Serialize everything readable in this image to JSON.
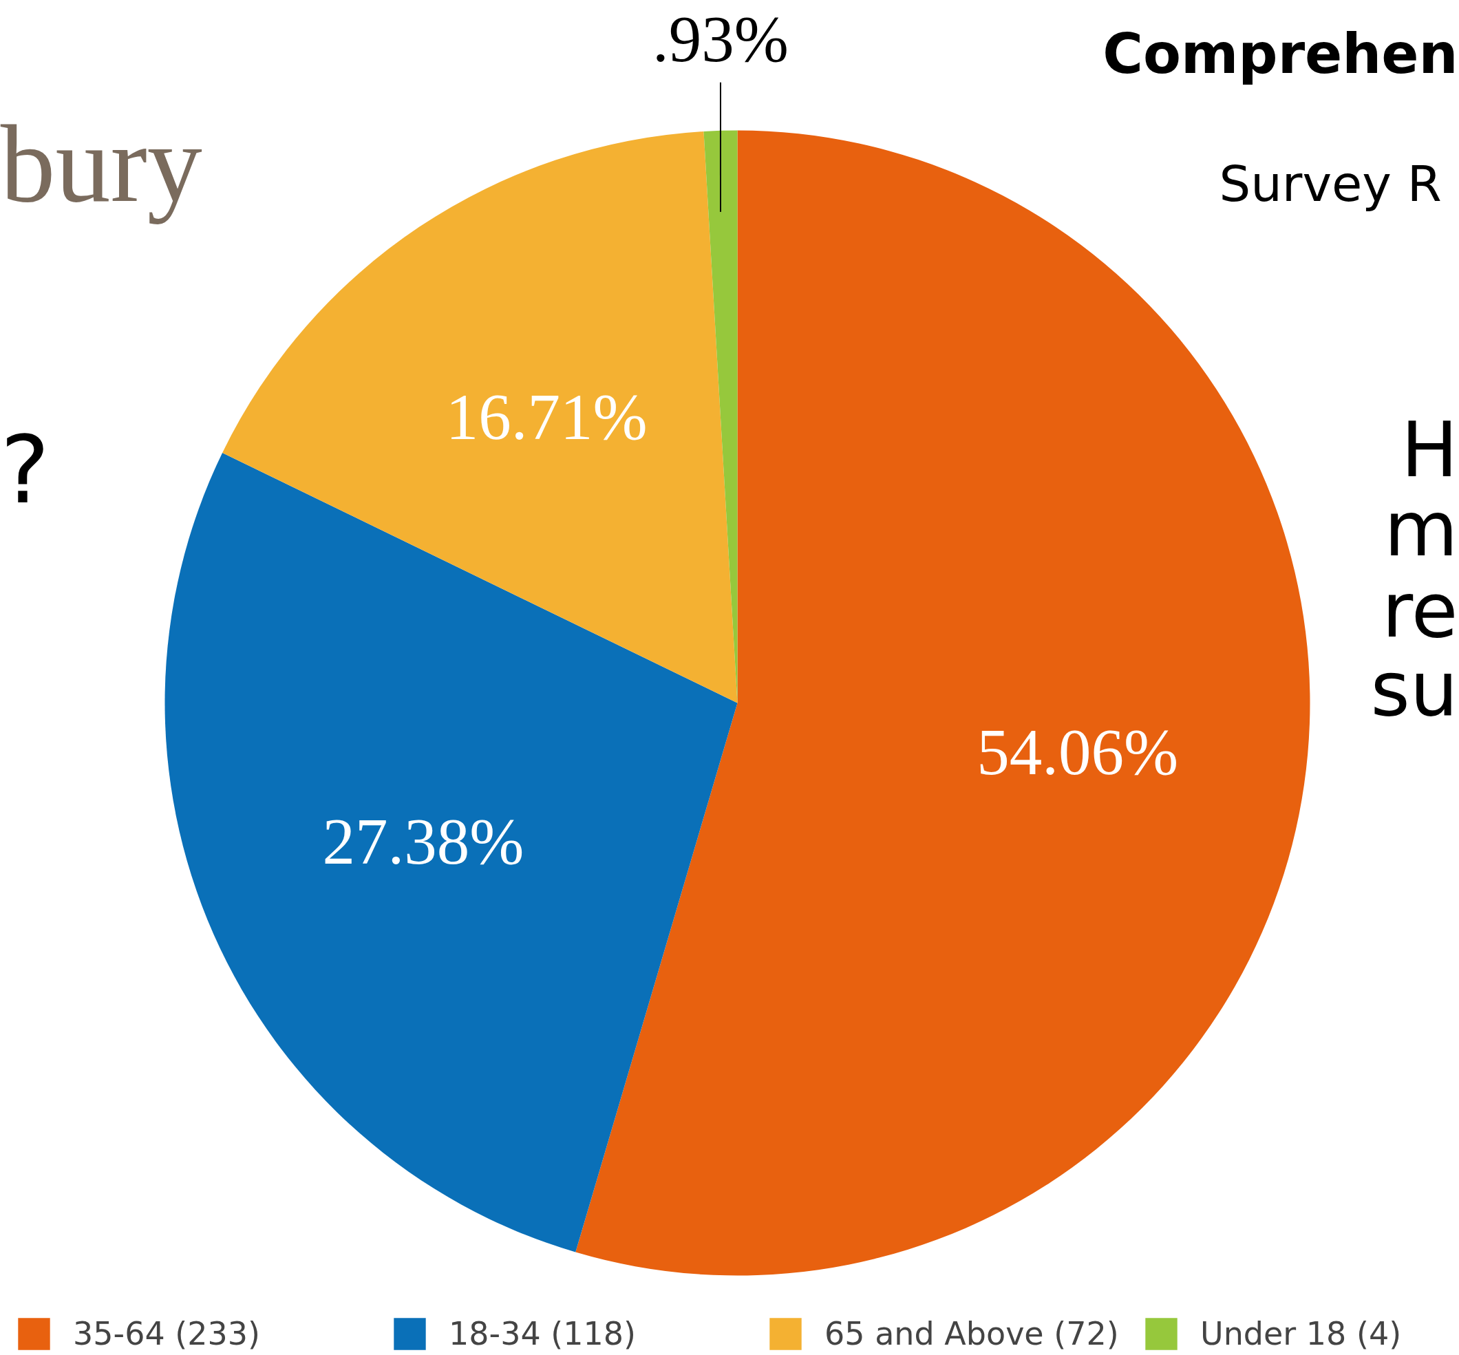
{
  "chart_data": {
    "type": "pie",
    "categories": [
      "35-64 (233)",
      "18-34 (118)",
      "65 and Above (72)",
      "Under 18 (4)"
    ],
    "values": [
      54.06,
      27.38,
      16.71,
      0.93
    ],
    "colors": [
      "#e8610f",
      "#0a70b8",
      "#f4b132",
      "#96c83c"
    ],
    "value_labels": [
      "54.06%",
      "27.38%",
      "16.71%",
      ".93%"
    ],
    "legend": "bottom",
    "annotations": [
      "bury",
      "Comprehen",
      "Survey R",
      "?",
      "H",
      "m",
      "re",
      "su"
    ]
  }
}
